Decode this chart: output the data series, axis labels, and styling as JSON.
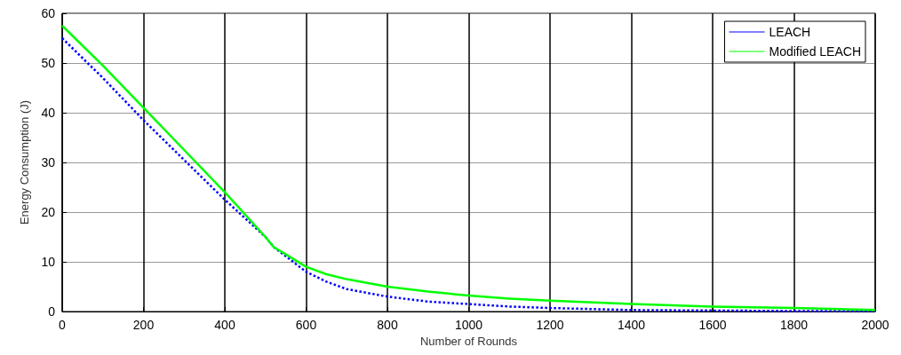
{
  "chart_data": {
    "type": "line",
    "xlabel": "Number of Rounds",
    "ylabel": "Energy Consumption (J)",
    "xlim": [
      0,
      2000
    ],
    "xticks": [
      0,
      200,
      400,
      600,
      800,
      1000,
      1200,
      1400,
      1600,
      1800,
      2000
    ],
    "ylim": [
      0,
      60
    ],
    "yticks": [
      0,
      10,
      20,
      30,
      40,
      50,
      60
    ],
    "grid": true,
    "legend": "top right",
    "marker": "none",
    "series": [
      {
        "name": "LEACH",
        "color": "#0000ff",
        "line_style": "dotted",
        "x": [
          0,
          100,
          200,
          300,
          400,
          500,
          520,
          560,
          600,
          650,
          700,
          800,
          900,
          1000,
          1100,
          1200,
          1400,
          1600,
          1800,
          2000
        ],
        "values": [
          55,
          47,
          38.5,
          30.5,
          22.5,
          15,
          13,
          10.5,
          8,
          6,
          4.5,
          3,
          2,
          1.5,
          1,
          0.7,
          0.3,
          0.2,
          0.1,
          0.1
        ]
      },
      {
        "name": "Modified LEACH",
        "color": "#00ff00",
        "line_style": "solid",
        "x": [
          0,
          100,
          200,
          300,
          400,
          500,
          520,
          560,
          600,
          650,
          700,
          800,
          900,
          1000,
          1100,
          1200,
          1400,
          1600,
          1800,
          2000
        ],
        "values": [
          57.5,
          49.5,
          41,
          32.5,
          24,
          15,
          13,
          11,
          9,
          7.5,
          6.5,
          5,
          4,
          3.2,
          2.6,
          2.2,
          1.5,
          1,
          0.7,
          0.3
        ]
      }
    ]
  }
}
